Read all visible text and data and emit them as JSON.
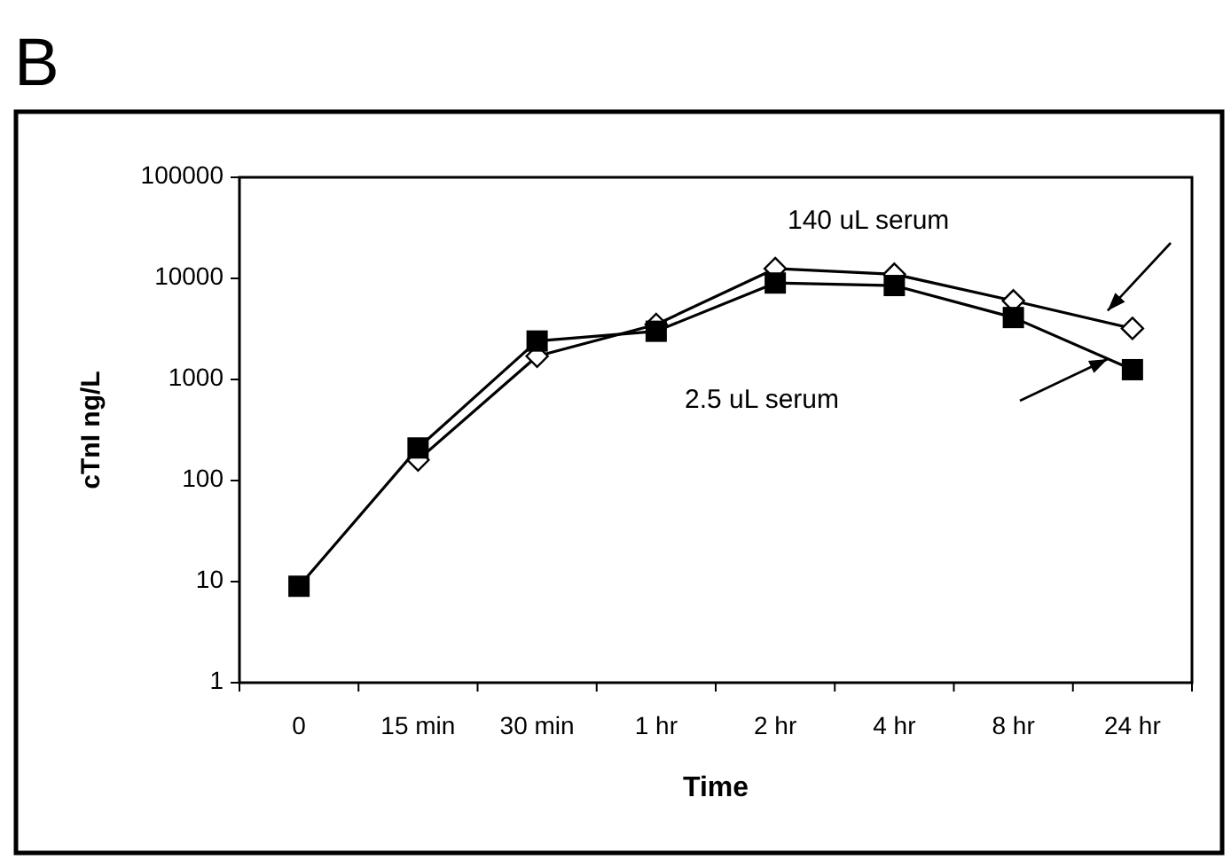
{
  "chart_data": {
    "type": "line",
    "title": "B",
    "xlabel": "Time",
    "ylabel": "cTnI ng/L",
    "categories": [
      "0",
      "15 min",
      "30 min",
      "1 hr",
      "2 hr",
      "4 hr",
      "8 hr",
      "24 hr"
    ],
    "series": [
      {
        "name": "140 uL serum",
        "color": "#000000",
        "marker": "diamond",
        "values": [
          null,
          160,
          1700,
          3500,
          12500,
          11000,
          6000,
          3200
        ]
      },
      {
        "name": "2.5 uL serum",
        "color": "#000000",
        "marker": "square",
        "values": [
          9,
          210,
          2400,
          3000,
          9000,
          8500,
          4100,
          1250
        ]
      }
    ],
    "log": true,
    "ylim": [
      1,
      100000
    ],
    "yticks": [
      1,
      10,
      100,
      1000,
      10000,
      100000
    ],
    "grid": false
  }
}
